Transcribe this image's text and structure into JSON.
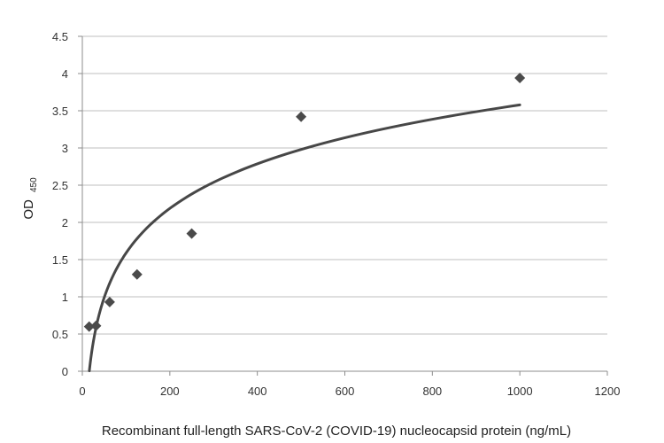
{
  "chart_data": {
    "type": "scatter",
    "xlabel": "Recombinant full-length SARS-CoV-2 (COVID-19) nucleocapsid protein (ng/mL)",
    "ylabel": {
      "main": "OD",
      "subscript": "450"
    },
    "xlim": [
      0,
      1200
    ],
    "ylim": [
      0,
      4.5
    ],
    "x_ticks": [
      0,
      200,
      400,
      600,
      800,
      1000,
      1200
    ],
    "y_ticks": [
      0,
      0.5,
      1,
      1.5,
      2,
      2.5,
      3,
      3.5,
      4,
      4.5
    ],
    "y_tick_labels": [
      "0",
      "0.5",
      "1",
      "1.5",
      "2",
      "2.5",
      "3",
      "3.5",
      "4",
      "4.5"
    ],
    "grid": {
      "horizontal": true,
      "vertical": false
    },
    "series": [
      {
        "marker": "diamond",
        "x": [
          15.6,
          31.25,
          62.5,
          125,
          250,
          500,
          1000
        ],
        "y": [
          0.6,
          0.61,
          0.93,
          1.3,
          1.85,
          3.42,
          3.94
        ]
      }
    ],
    "trendline": {
      "type": "logarithmic",
      "coefficients": {
        "a": 0.864,
        "b": -2.39
      },
      "x_range": [
        16,
        1000
      ]
    },
    "colors": {
      "marker": "#4a4a4a",
      "trendline": "#474747",
      "grid": "#bfbfbf",
      "axis": "#8c8c8c"
    }
  }
}
